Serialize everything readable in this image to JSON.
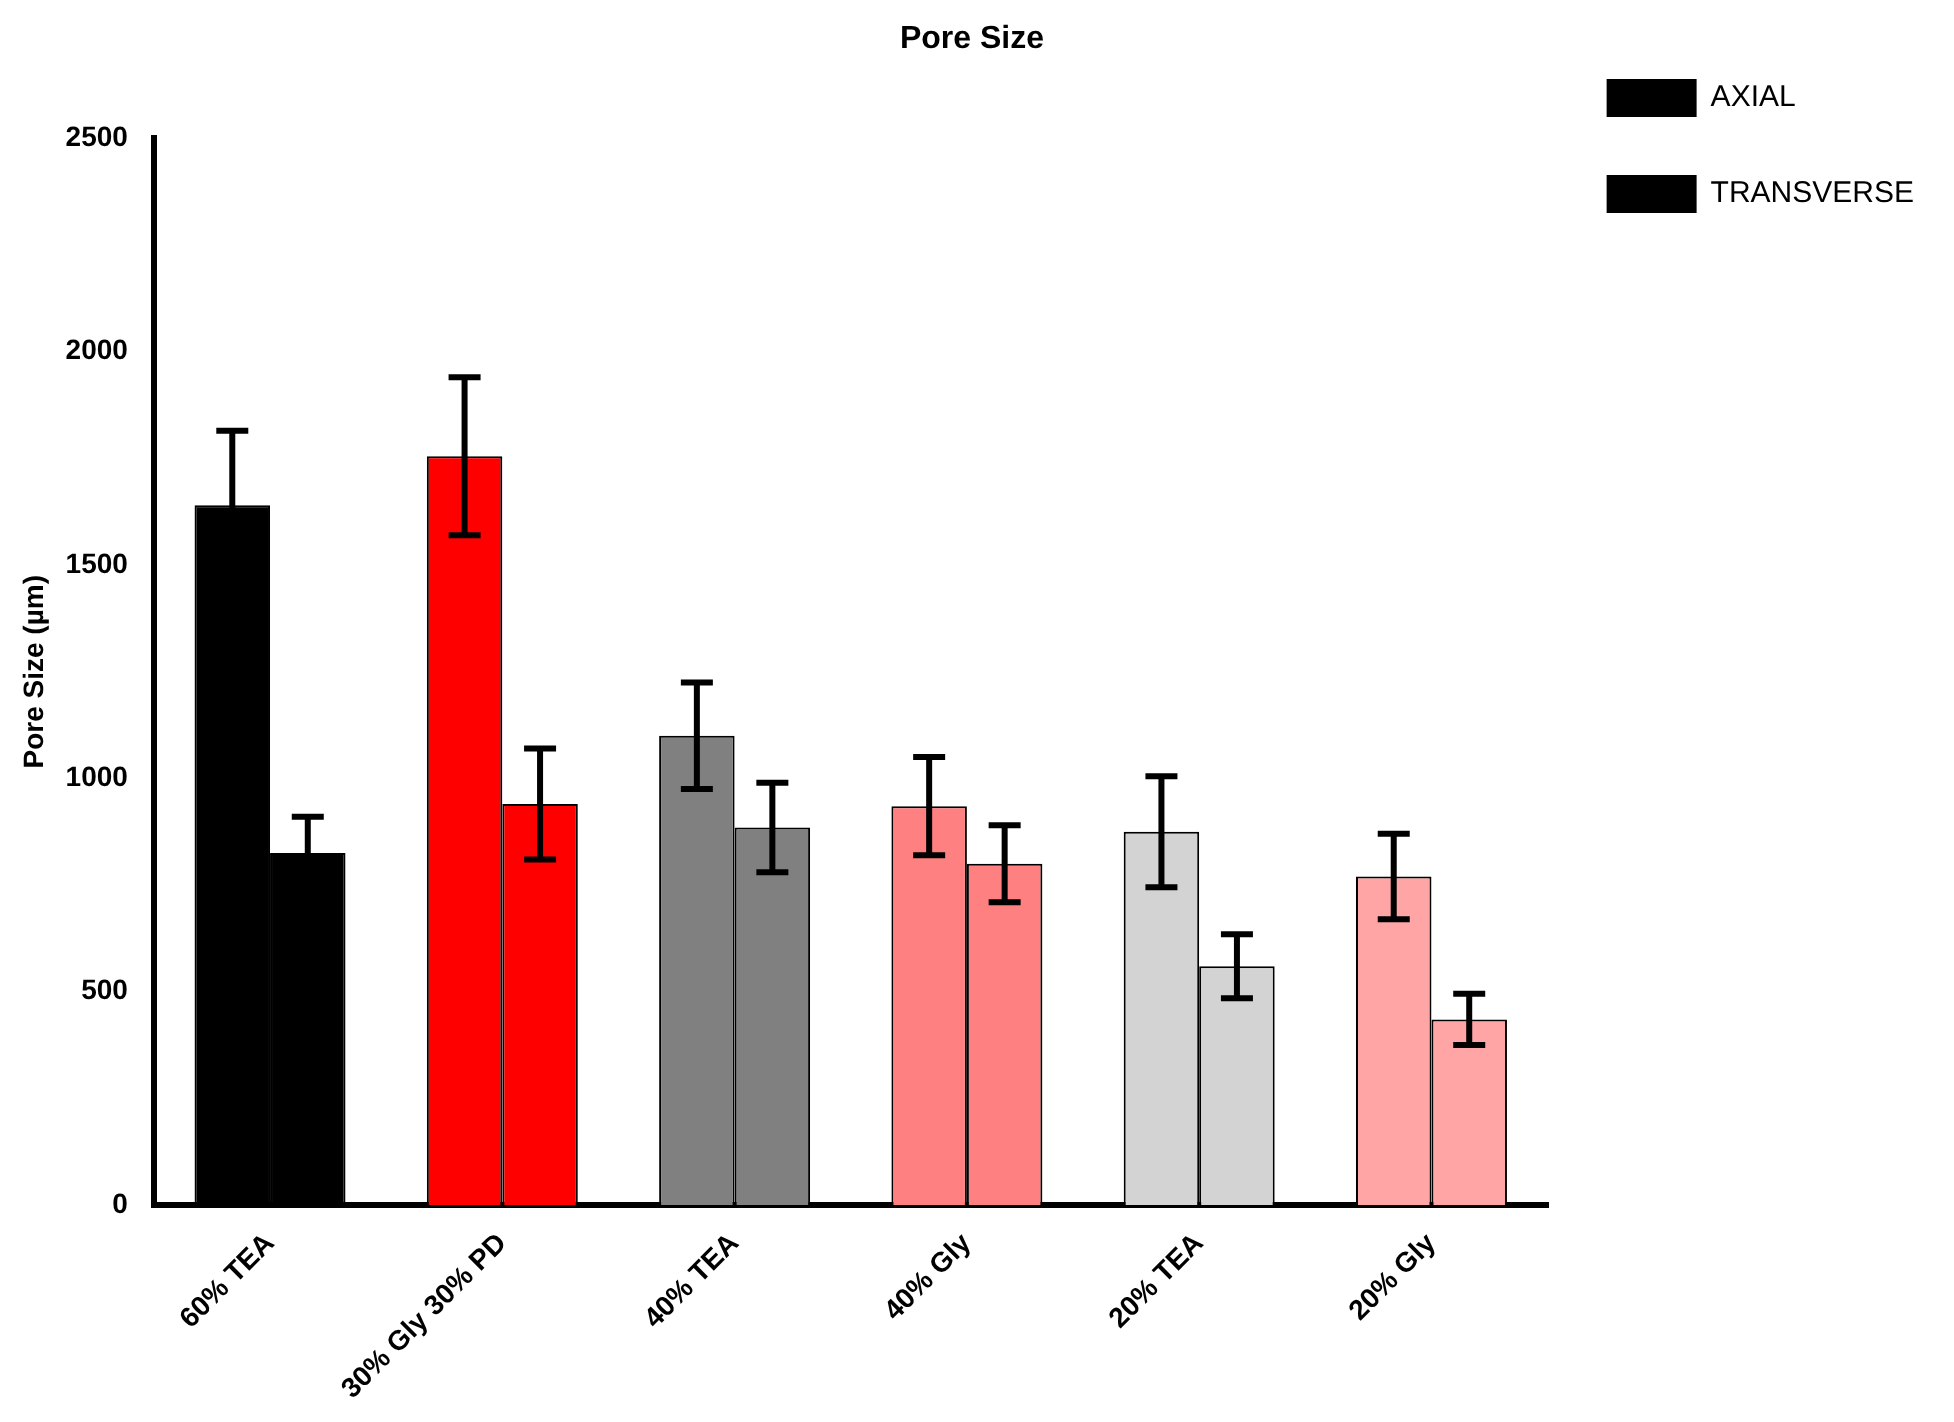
{
  "chart_data": {
    "type": "bar",
    "title": "Pore Size",
    "ylabel": "Pore Size (µm)",
    "categories": [
      "60% TEA",
      "30% Gly 30% PD",
      "40% TEA",
      "40% Gly",
      "20% TEA",
      "20% Gly"
    ],
    "series": [
      {
        "name": "AXIAL",
        "colors": [
          "#000000",
          "#ff0000",
          "#808080",
          "#ff8080",
          "#d3d3d3",
          "#ffa5a5"
        ],
        "values": [
          1640,
          1755,
          1100,
          935,
          875,
          770
        ],
        "errors": [
          175,
          185,
          125,
          115,
          130,
          100
        ]
      },
      {
        "name": "TRANSVERSE",
        "colors": [
          "#000000",
          "#ff0000",
          "#808080",
          "#ff8080",
          "#d3d3d3",
          "#ffa5a5"
        ],
        "values": [
          825,
          940,
          885,
          800,
          560,
          435
        ],
        "errors": [
          85,
          130,
          105,
          90,
          75,
          60
        ]
      }
    ],
    "ylim": [
      0,
      2500
    ],
    "yticks": [
      0,
      500,
      1000,
      1500,
      2000,
      2500
    ],
    "grid": false,
    "legend": "top right"
  }
}
